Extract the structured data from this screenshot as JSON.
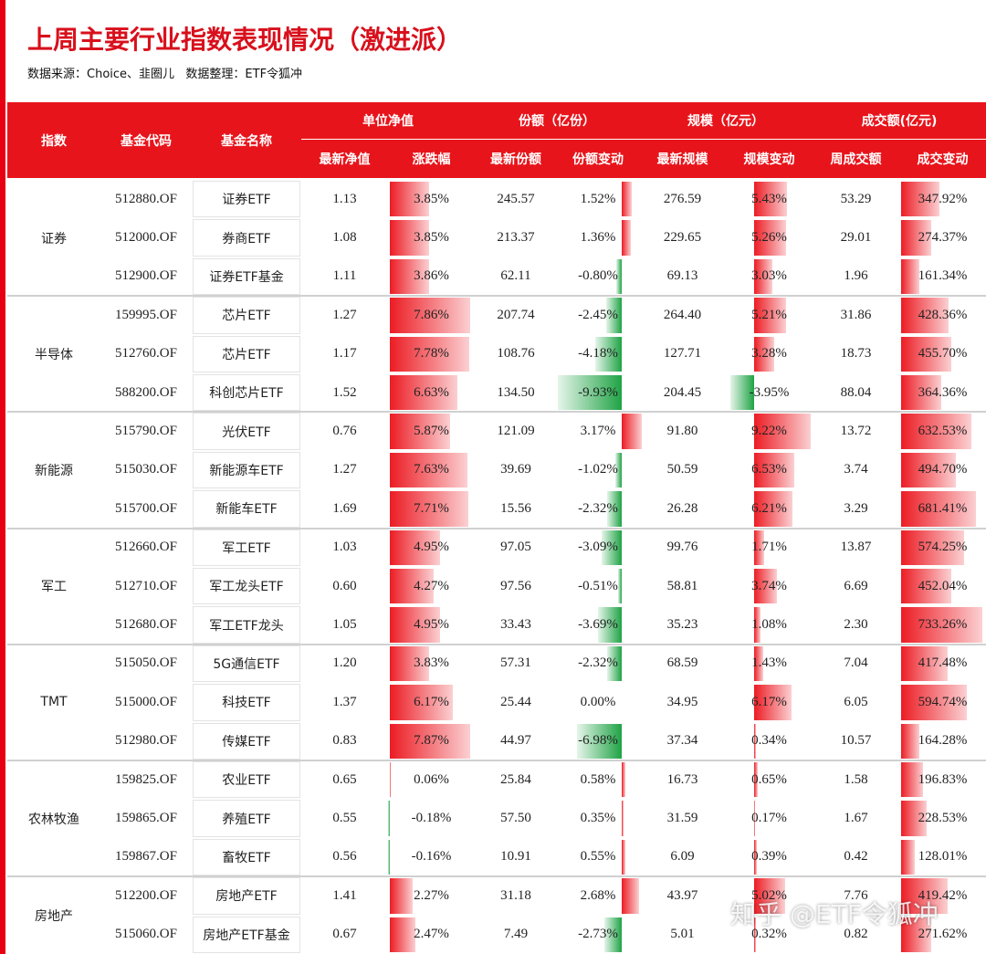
{
  "header": {
    "title": "上周主要行业指数表现情况（激进派）",
    "source": "数据来源：Choice、韭圈儿   数据整理：ETF令狐冲"
  },
  "table": {
    "header_main": [
      "指数",
      "基金代码",
      "基金名称"
    ],
    "header_groups": [
      "单位净值",
      "份额（亿份）",
      "规模（亿元）",
      "成交额(亿元)"
    ],
    "header_sub": [
      "最新净值",
      "涨跌幅",
      "最新份额",
      "份额变动",
      "最新规模",
      "规模变动",
      "周成交额",
      "成交变动"
    ],
    "sections": [
      {
        "name": "证券",
        "rows": [
          [
            "512880.OF",
            "证券ETF",
            "1.13",
            "3.85%",
            "245.57",
            "1.52%",
            "276.59",
            "5.43%",
            "53.29",
            "347.92%"
          ],
          [
            "512000.OF",
            "券商ETF",
            "1.08",
            "3.85%",
            "213.37",
            "1.36%",
            "229.65",
            "5.26%",
            "29.01",
            "274.37%"
          ],
          [
            "512900.OF",
            "证券ETF基金",
            "1.11",
            "3.86%",
            "62.11",
            "-0.80%",
            "69.13",
            "3.03%",
            "1.96",
            "161.34%"
          ]
        ]
      },
      {
        "name": "半导体",
        "rows": [
          [
            "159995.OF",
            "芯片ETF",
            "1.27",
            "7.86%",
            "207.74",
            "-2.45%",
            "264.40",
            "5.21%",
            "31.86",
            "428.36%"
          ],
          [
            "512760.OF",
            "芯片ETF",
            "1.17",
            "7.78%",
            "108.76",
            "-4.18%",
            "127.71",
            "3.28%",
            "18.73",
            "455.70%"
          ],
          [
            "588200.OF",
            "科创芯片ETF",
            "1.52",
            "6.63%",
            "134.50",
            "-9.93%",
            "204.45",
            "-3.95%",
            "88.04",
            "364.36%"
          ]
        ]
      },
      {
        "name": "新能源",
        "rows": [
          [
            "515790.OF",
            "光伏ETF",
            "0.76",
            "5.87%",
            "121.09",
            "3.17%",
            "91.80",
            "9.22%",
            "13.72",
            "632.53%"
          ],
          [
            "515030.OF",
            "新能源车ETF",
            "1.27",
            "7.63%",
            "39.69",
            "-1.02%",
            "50.59",
            "6.53%",
            "3.74",
            "494.70%"
          ],
          [
            "515700.OF",
            "新能车ETF",
            "1.69",
            "7.71%",
            "15.56",
            "-2.32%",
            "26.28",
            "6.21%",
            "3.29",
            "681.41%"
          ]
        ]
      },
      {
        "name": "军工",
        "rows": [
          [
            "512660.OF",
            "军工ETF",
            "1.03",
            "4.95%",
            "97.05",
            "-3.09%",
            "99.76",
            "1.71%",
            "13.87",
            "574.25%"
          ],
          [
            "512710.OF",
            "军工龙头ETF",
            "0.60",
            "4.27%",
            "97.56",
            "-0.51%",
            "58.81",
            "3.74%",
            "6.69",
            "452.04%"
          ],
          [
            "512680.OF",
            "军工ETF龙头",
            "1.05",
            "4.95%",
            "33.43",
            "-3.69%",
            "35.23",
            "1.08%",
            "2.30",
            "733.26%"
          ]
        ]
      },
      {
        "name": "TMT",
        "rows": [
          [
            "515050.OF",
            "5G通信ETF",
            "1.20",
            "3.83%",
            "57.31",
            "-2.32%",
            "68.59",
            "1.43%",
            "7.04",
            "417.48%"
          ],
          [
            "515000.OF",
            "科技ETF",
            "1.37",
            "6.17%",
            "25.44",
            "0.00%",
            "34.95",
            "6.17%",
            "6.05",
            "594.74%"
          ],
          [
            "512980.OF",
            "传媒ETF",
            "0.83",
            "7.87%",
            "44.97",
            "-6.98%",
            "37.34",
            "0.34%",
            "10.57",
            "164.28%"
          ]
        ]
      },
      {
        "name": "农林牧渔",
        "rows": [
          [
            "159825.OF",
            "农业ETF",
            "0.65",
            "0.06%",
            "25.84",
            "0.58%",
            "16.73",
            "0.65%",
            "1.58",
            "196.83%"
          ],
          [
            "159865.OF",
            "养殖ETF",
            "0.55",
            "-0.18%",
            "57.50",
            "0.35%",
            "31.59",
            "0.17%",
            "1.67",
            "228.53%"
          ],
          [
            "159867.OF",
            "畜牧ETF",
            "0.56",
            "-0.16%",
            "10.91",
            "0.55%",
            "6.09",
            "0.39%",
            "0.42",
            "128.01%"
          ]
        ]
      },
      {
        "name": "房地产",
        "rows": [
          [
            "512200.OF",
            "房地产ETF",
            "1.41",
            "2.27%",
            "31.18",
            "2.68%",
            "43.97",
            "5.02%",
            "7.76",
            "419.42%"
          ],
          [
            "515060.OF",
            "房地产ETF基金",
            "0.67",
            "2.47%",
            "7.49",
            "-2.73%",
            "5.01",
            "0.32%",
            "0.82",
            "271.62%"
          ]
        ]
      }
    ]
  },
  "watermark": "知乎 @ETF令狐冲"
}
